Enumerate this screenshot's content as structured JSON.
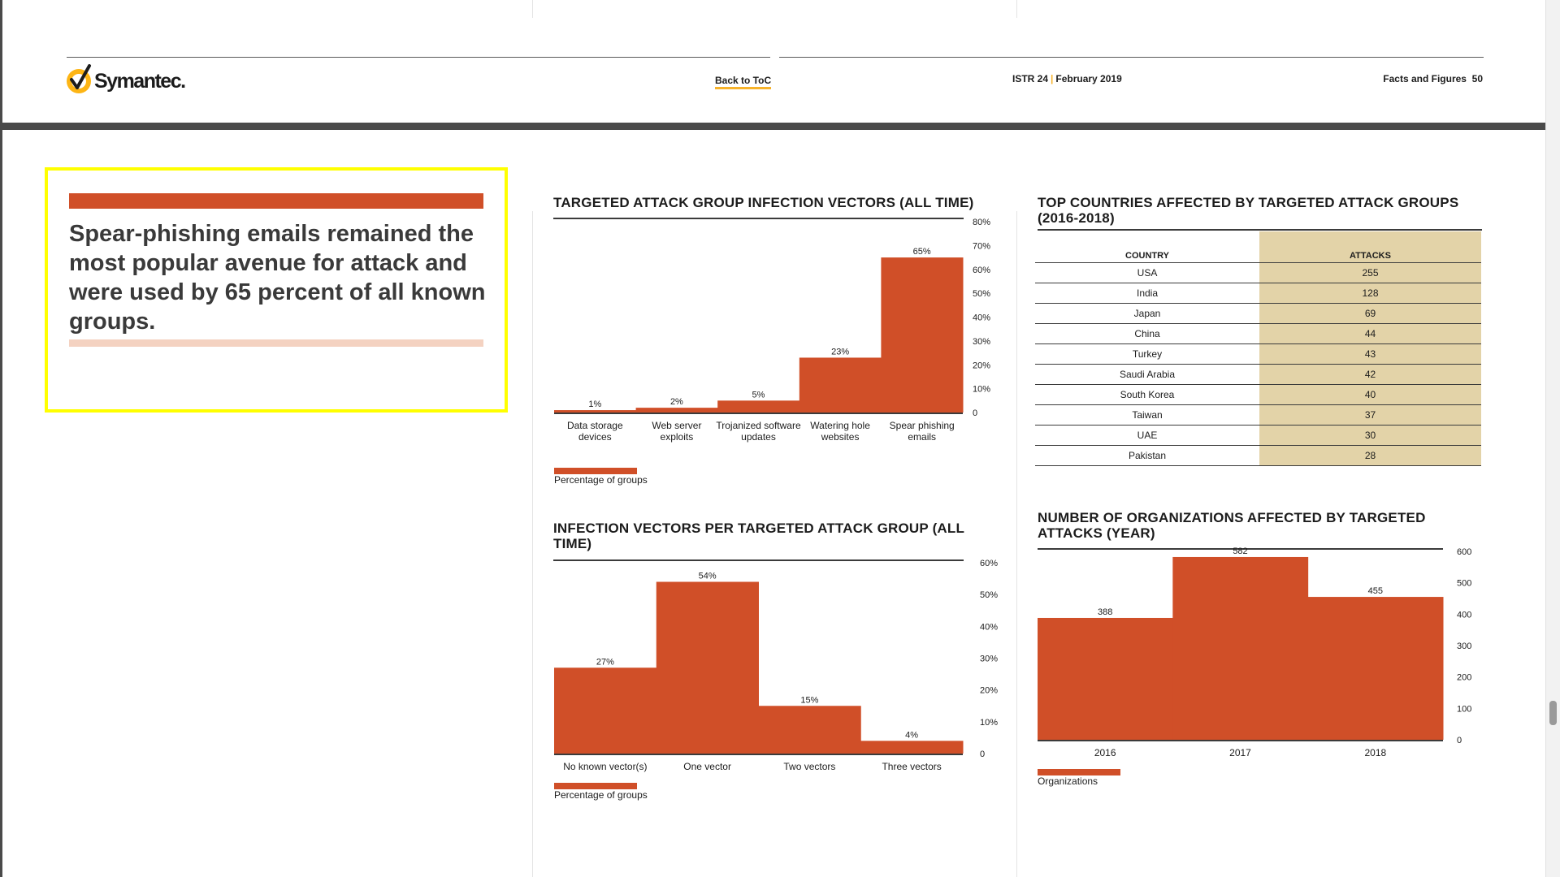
{
  "header": {
    "logo_text": "Symantec.",
    "back_to_toc": "Back to ToC",
    "issue": "ISTR 24",
    "date": "February 2019",
    "section": "Facts and Figures",
    "page_number": "50"
  },
  "callout": {
    "text": "Spear-phishing emails remained the most popular avenue for attack and were used by 65 percent of all known groups."
  },
  "colors": {
    "bar": "#d04f28",
    "accent": "#f7b32b",
    "table_highlight": "#e3d3a8",
    "highlight_border": "#ffff00"
  },
  "chart_data": [
    {
      "id": "vectors_all_time",
      "type": "bar",
      "title": "TARGETED ATTACK GROUP INFECTION VECTORS (ALL TIME)",
      "categories": [
        "Data storage devices",
        "Web server exploits",
        "Trojanized software updates",
        "Watering hole websites",
        "Spear phishing emails"
      ],
      "category_lines": [
        [
          "Data storage",
          "devices"
        ],
        [
          "Web server",
          "exploits"
        ],
        [
          "Trojanized software",
          "updates"
        ],
        [
          "Watering hole",
          "websites"
        ],
        [
          "Spear phishing",
          "emails"
        ]
      ],
      "values": [
        1,
        2,
        5,
        23,
        65
      ],
      "value_labels": [
        "1%",
        "2%",
        "5%",
        "23%",
        "65%"
      ],
      "yticks": [
        "0",
        "10%",
        "20%",
        "30%",
        "40%",
        "50%",
        "60%",
        "70%",
        "80%"
      ],
      "ylim": [
        0,
        80
      ],
      "legend": "Percentage of groups"
    },
    {
      "id": "vectors_per_group",
      "type": "bar",
      "title": "INFECTION VECTORS PER TARGETED ATTACK GROUP (ALL TIME)",
      "categories": [
        "No known vector(s)",
        "One vector",
        "Two vectors",
        "Three vectors"
      ],
      "values": [
        27,
        54,
        15,
        4
      ],
      "value_labels": [
        "27%",
        "54%",
        "15%",
        "4%"
      ],
      "yticks": [
        "0",
        "10%",
        "20%",
        "30%",
        "40%",
        "50%",
        "60%"
      ],
      "ylim": [
        0,
        60
      ],
      "legend": "Percentage of groups"
    },
    {
      "id": "top_countries",
      "type": "table",
      "title": "TOP COUNTRIES AFFECTED BY TARGETED ATTACK GROUPS (2016-2018)",
      "columns": [
        "COUNTRY",
        "ATTACKS"
      ],
      "rows": [
        [
          "USA",
          "255"
        ],
        [
          "India",
          "128"
        ],
        [
          "Japan",
          "69"
        ],
        [
          "China",
          "44"
        ],
        [
          "Turkey",
          "43"
        ],
        [
          "Saudi Arabia",
          "42"
        ],
        [
          "South Korea",
          "40"
        ],
        [
          "Taiwan",
          "37"
        ],
        [
          "UAE",
          "30"
        ],
        [
          "Pakistan",
          "28"
        ]
      ]
    },
    {
      "id": "orgs_per_year",
      "type": "bar",
      "title": "NUMBER OF ORGANIZATIONS AFFECTED BY TARGETED ATTACKS (YEAR)",
      "categories": [
        "2016",
        "2017",
        "2018"
      ],
      "values": [
        388,
        582,
        455
      ],
      "value_labels": [
        "388",
        "582",
        "455"
      ],
      "yticks": [
        "0",
        "100",
        "200",
        "300",
        "400",
        "500",
        "600"
      ],
      "ylim": [
        0,
        600
      ],
      "legend": "Organizations"
    }
  ]
}
